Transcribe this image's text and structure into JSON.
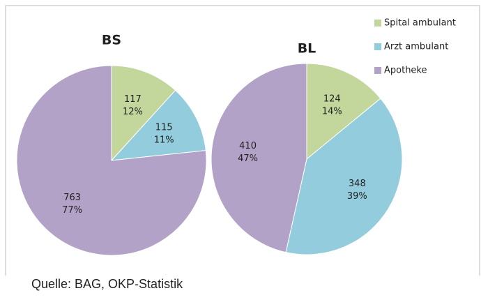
{
  "chart_data": [
    {
      "type": "pie",
      "title": "BS",
      "categories": [
        "Spital ambulant",
        "Arzt ambulant",
        "Apotheke"
      ],
      "colors": [
        "#c3d69b",
        "#93cddd",
        "#b3a2c7"
      ],
      "values": [
        117,
        115,
        763
      ],
      "percent_labels": [
        "12%",
        "11%",
        "77%"
      ],
      "legend": "top-right"
    },
    {
      "type": "pie",
      "title": "BL",
      "categories": [
        "Spital ambulant",
        "Arzt ambulant",
        "Apotheke"
      ],
      "colors": [
        "#c3d69b",
        "#93cddd",
        "#b3a2c7"
      ],
      "values": [
        124,
        348,
        410
      ],
      "percent_labels": [
        "14%",
        "39%",
        "47%"
      ]
    }
  ],
  "source": "Quelle: BAG, OKP-Statistik"
}
